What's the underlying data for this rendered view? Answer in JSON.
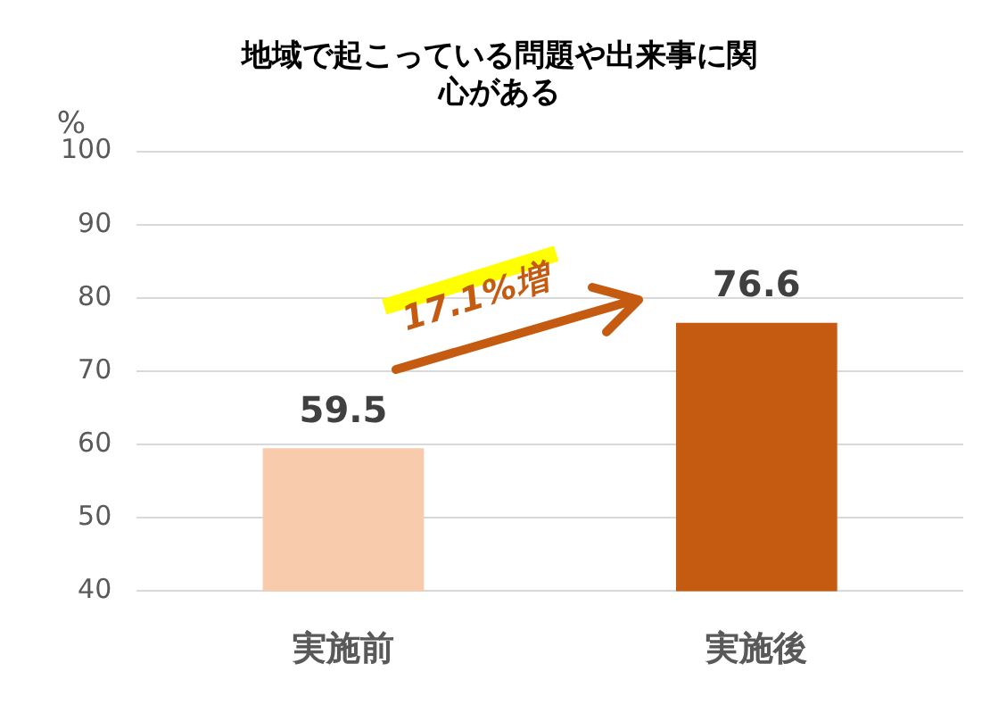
{
  "chart_data": {
    "type": "bar",
    "title": "地域で起こっている問題や出来事に関心がある",
    "ylabel": "%",
    "categories": [
      "実施前",
      "実施後"
    ],
    "values": [
      59.5,
      76.6
    ],
    "colors": [
      "#f8cbad",
      "#c55a11"
    ],
    "ylim": [
      40,
      100
    ],
    "yticks": [
      40,
      50,
      60,
      70,
      80,
      90,
      100
    ],
    "grid": "y",
    "data_labels": true,
    "legend": false,
    "annotations": [
      "17.1%増"
    ]
  }
}
